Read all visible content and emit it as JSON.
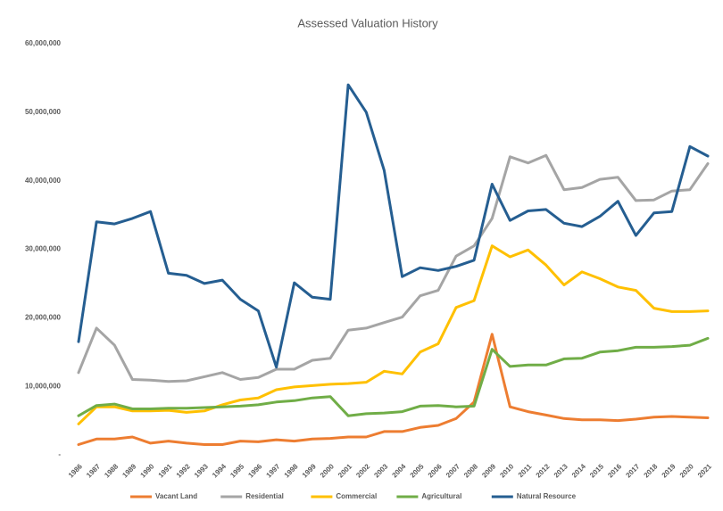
{
  "chart_data": {
    "type": "line",
    "title": "Assessed Valuation History",
    "categories": [
      "1986",
      "1987",
      "1988",
      "1989",
      "1990",
      "1991",
      "1992",
      "1993",
      "1994",
      "1995",
      "1996",
      "1997",
      "1998",
      "1999",
      "2000",
      "2001",
      "2002",
      "2003",
      "2004",
      "2005",
      "2006",
      "2007",
      "2008",
      "2009",
      "2010",
      "2011",
      "2012",
      "2013",
      "2014",
      "2015",
      "2016",
      "2017",
      "2018",
      "2019",
      "2020",
      "2021"
    ],
    "series": [
      {
        "name": "Vacant Land",
        "color": "#ed7d31",
        "values": [
          1500000,
          2300000,
          2300000,
          2600000,
          1700000,
          2000000,
          1700000,
          1500000,
          1500000,
          2000000,
          1900000,
          2200000,
          2000000,
          2300000,
          2400000,
          2600000,
          2600000,
          3400000,
          3400000,
          4000000,
          4300000,
          5300000,
          7700000,
          17600000,
          7000000,
          6300000,
          5800000,
          5300000,
          5100000,
          5100000,
          5000000,
          5200000,
          5500000,
          5600000,
          5500000,
          5400000
        ]
      },
      {
        "name": "Residential",
        "color": "#a5a5a5",
        "values": [
          12000000,
          18500000,
          16000000,
          11000000,
          10900000,
          10700000,
          10800000,
          11400000,
          12000000,
          11000000,
          11300000,
          12500000,
          12500000,
          13800000,
          14100000,
          18200000,
          18500000,
          19300000,
          20100000,
          23200000,
          24000000,
          29000000,
          30500000,
          34500000,
          43500000,
          42600000,
          43700000,
          38700000,
          39000000,
          40200000,
          40500000,
          37100000,
          37200000,
          38500000,
          38700000,
          42500000
        ]
      },
      {
        "name": "Commercial",
        "color": "#ffc000",
        "values": [
          4500000,
          7000000,
          7000000,
          6400000,
          6400000,
          6500000,
          6200000,
          6400000,
          7300000,
          8000000,
          8300000,
          9500000,
          9900000,
          10100000,
          10300000,
          10400000,
          10600000,
          12200000,
          11800000,
          15000000,
          16200000,
          21500000,
          22500000,
          30500000,
          28900000,
          29900000,
          27700000,
          24800000,
          26700000,
          25700000,
          24500000,
          24000000,
          21400000,
          20900000,
          20900000,
          21000000
        ]
      },
      {
        "name": "Agricultural",
        "color": "#70ad47",
        "values": [
          5700000,
          7200000,
          7400000,
          6700000,
          6700000,
          6800000,
          6800000,
          6900000,
          7000000,
          7100000,
          7300000,
          7700000,
          7900000,
          8300000,
          8500000,
          5700000,
          6000000,
          6100000,
          6300000,
          7100000,
          7200000,
          7000000,
          7100000,
          15400000,
          12900000,
          13100000,
          13100000,
          14000000,
          14100000,
          15000000,
          15200000,
          15700000,
          15700000,
          15800000,
          16000000,
          17000000
        ]
      },
      {
        "name": "Natural Resource",
        "color": "#255e91",
        "values": [
          16500000,
          34000000,
          33700000,
          34500000,
          35500000,
          26500000,
          26200000,
          25000000,
          25500000,
          22700000,
          21000000,
          12800000,
          25100000,
          23000000,
          22700000,
          54000000,
          50000000,
          41500000,
          26000000,
          27300000,
          26900000,
          27500000,
          28400000,
          39500000,
          34200000,
          35600000,
          35800000,
          33800000,
          33300000,
          34800000,
          37000000,
          32000000,
          35300000,
          35500000,
          45000000,
          43600000
        ]
      }
    ],
    "ylim": [
      0,
      60000000
    ],
    "yticks": [
      {
        "value": 0,
        "label": "-"
      },
      {
        "value": 10000000,
        "label": "10,000,000"
      },
      {
        "value": 20000000,
        "label": "20,000,000"
      },
      {
        "value": 30000000,
        "label": "30,000,000"
      },
      {
        "value": 40000000,
        "label": "40,000,000"
      },
      {
        "value": 50000000,
        "label": "50,000,000"
      },
      {
        "value": 60000000,
        "label": "60,000,000"
      }
    ],
    "grid": false,
    "legend": "bottom"
  }
}
